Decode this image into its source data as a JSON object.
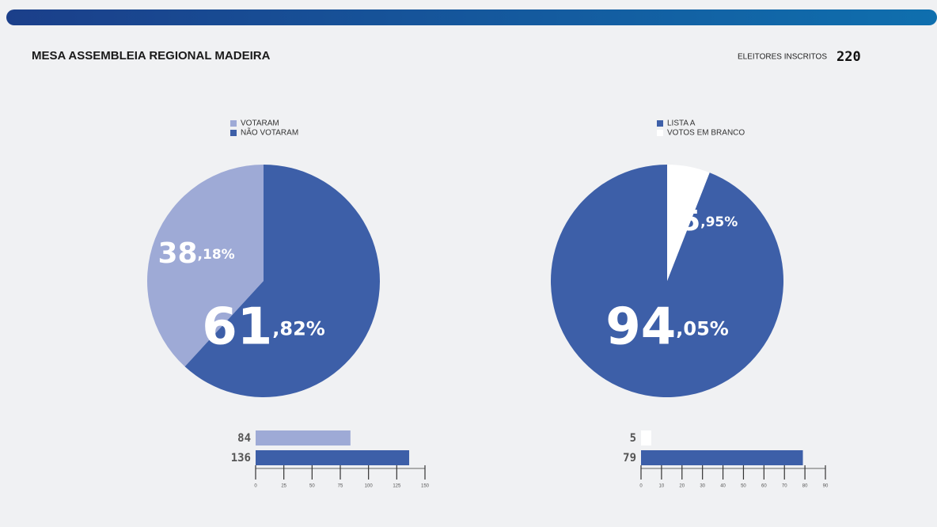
{
  "header": {
    "title": "MESA ASSEMBLEIA REGIONAL MADEIRA",
    "label": "ELEITORES INSCRITOS",
    "value": 220
  },
  "chart_data": [
    {
      "type": "pie",
      "categories": [
        "VOTARAM",
        "NÃO VOTARAM"
      ],
      "values": [
        38.18,
        61.82
      ],
      "value_labels": [
        "38,18%",
        "61,82%"
      ],
      "colors": [
        "#9eaad6",
        "#3d5fa8"
      ]
    },
    {
      "type": "pie",
      "categories": [
        "LISTA A",
        "VOTOS EM BRANCO"
      ],
      "values": [
        94.05,
        5.95
      ],
      "value_labels": [
        "94,05%",
        "5,95%"
      ],
      "colors": [
        "#3d5fa8",
        "#ffffff"
      ]
    },
    {
      "type": "hbar",
      "categories": [
        null,
        null
      ],
      "values": [
        84,
        136
      ],
      "colors": [
        "#9eaad6",
        "#3d5fa8"
      ],
      "xlim": [
        0,
        150
      ],
      "xticks": [
        0,
        25,
        50,
        75,
        100,
        125,
        150
      ]
    },
    {
      "type": "hbar",
      "categories": [
        null,
        null
      ],
      "values": [
        5,
        79
      ],
      "colors": [
        "#ffffff",
        "#3d5fa8"
      ],
      "xlim": [
        0,
        90
      ],
      "xticks": [
        0,
        10,
        20,
        30,
        40,
        50,
        60,
        70,
        80,
        90
      ]
    }
  ]
}
